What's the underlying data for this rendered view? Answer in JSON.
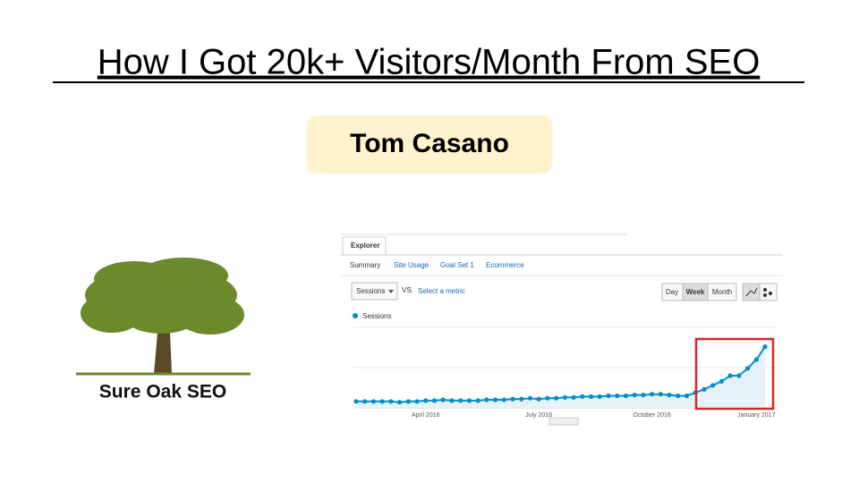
{
  "header": {
    "title": "How I Got 20k+ Visitors/Month From SEO",
    "author": "Tom Casano"
  },
  "logo": {
    "name": "Sure Oak SEO"
  },
  "analytics": {
    "tab": "Explorer",
    "subtabs": [
      "Summary",
      "Site Usage",
      "Goal Set 1",
      "Ecommerce"
    ],
    "metric": "Sessions",
    "vs": "VS.",
    "select_metric": "Select a metric",
    "periods": [
      "Day",
      "Week",
      "Month"
    ]
  },
  "chart_data": {
    "type": "line",
    "categories": [
      null,
      null,
      null,
      null,
      null,
      null,
      null,
      null,
      "April 2016",
      null,
      null,
      null,
      null,
      null,
      null,
      null,
      null,
      null,
      null,
      null,
      null,
      "July 2016",
      null,
      null,
      null,
      null,
      null,
      null,
      null,
      null,
      null,
      null,
      null,
      null,
      "October 2016",
      null,
      null,
      null,
      null,
      null,
      null,
      null,
      null,
      null,
      null,
      null,
      "January 2017",
      null
    ],
    "series": [
      {
        "name": "Sessions",
        "color": "#058dc7",
        "values": [
          8,
          8,
          8,
          8,
          8,
          7,
          8,
          8,
          9,
          9,
          10,
          9,
          9,
          9,
          9,
          10,
          10,
          10,
          11,
          11,
          12,
          11,
          12,
          12,
          13,
          13,
          14,
          14,
          14,
          15,
          15,
          15,
          16,
          16,
          17,
          17,
          16,
          15,
          15,
          19,
          23,
          28,
          33,
          40,
          40,
          49,
          60,
          76
        ]
      }
    ],
    "ylim": [
      0,
      100
    ]
  }
}
